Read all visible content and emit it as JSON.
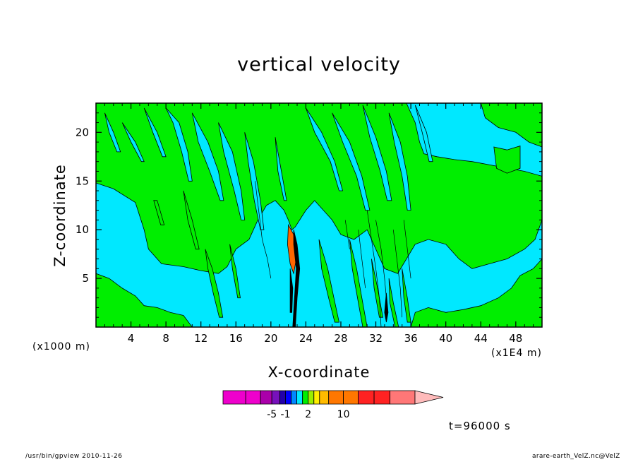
{
  "chart_data": {
    "type": "contour",
    "title": "vertical velocity",
    "xlabel": "X-coordinate",
    "ylabel": "Z-coordinate",
    "x_unit_left": "(x1000 m)",
    "x_unit_right": "(x1E4 m)",
    "x_ticks": [
      "4",
      "8",
      "12",
      "16",
      "20",
      "24",
      "28",
      "32",
      "36",
      "40",
      "44",
      "48"
    ],
    "x_tick_values": [
      4,
      8,
      12,
      16,
      20,
      24,
      28,
      32,
      36,
      40,
      44,
      48
    ],
    "y_ticks": [
      "5",
      "10",
      "15",
      "20"
    ],
    "y_tick_values": [
      5,
      10,
      15,
      20
    ],
    "xlim": [
      0,
      51
    ],
    "ylim": [
      0,
      23
    ],
    "colors": {
      "background_field": "#00e8ff",
      "green_field": "#00ee00",
      "updraft": "#ff6600",
      "downdraft": "#000000"
    },
    "colorbar": {
      "colors": [
        "#ee00cc",
        "#ee00cc",
        "#aa00aa",
        "#7711bb",
        "#2200aa",
        "#0000ff",
        "#0088ff",
        "#00e8ff",
        "#00ee00",
        "#99ee00",
        "#ffee00",
        "#ffbb00",
        "#ff7700",
        "#ff7700",
        "#ff2222",
        "#ff2222",
        "#ff7777",
        "#ffaaaa"
      ],
      "labels": [
        "-5",
        "-1",
        "2",
        "10"
      ],
      "label_values": [
        -5,
        -1,
        2,
        10
      ],
      "triangle_color": "#ffbbbb"
    },
    "time_label": "t=96000 s"
  },
  "footer": {
    "left": "/usr/bin/gpview   2010-11-26",
    "right": "arare-earth_VelZ.nc@VelZ"
  }
}
